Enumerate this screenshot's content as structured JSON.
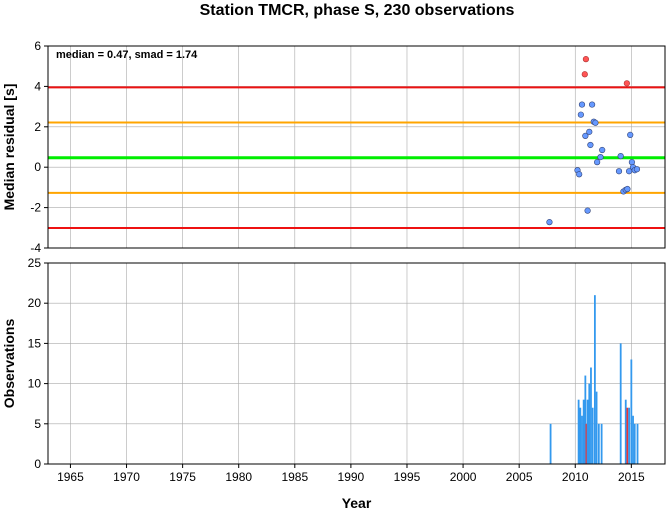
{
  "title": "Station TMCR, phase S, 230 observations",
  "annotation": "median = 0.47, smad = 1.74",
  "colors": {
    "median_line": "#00ee00",
    "smad1_line": "#ffa500",
    "smad2_line": "#ee1111",
    "point_normal": "#6699ff",
    "point_outlier": "#ff5555",
    "bar_normal": "#3399ee",
    "bar_outlier": "#ee3333",
    "grid": "#aaaaaa"
  },
  "chart_data": [
    {
      "type": "scatter",
      "ylabel": "Median residual [s]",
      "xlim": [
        1963,
        2018
      ],
      "ylim": [
        -4,
        6
      ],
      "yticks": [
        "-4",
        "-2",
        "0",
        "2",
        "4",
        "6"
      ],
      "reference_lines": {
        "median": 0.47,
        "plus_smad": 2.21,
        "minus_smad": -1.27,
        "plus_2smad": 3.95,
        "minus_2smad": -3.01
      },
      "points": [
        {
          "x": 2007.7,
          "y": -2.72
        },
        {
          "x": 2010.2,
          "y": -0.15
        },
        {
          "x": 2010.35,
          "y": -0.35
        },
        {
          "x": 2010.5,
          "y": 2.6
        },
        {
          "x": 2010.6,
          "y": 3.1
        },
        {
          "x": 2010.9,
          "y": 1.55
        },
        {
          "x": 2011.1,
          "y": -2.15
        },
        {
          "x": 2011.25,
          "y": 1.75
        },
        {
          "x": 2011.35,
          "y": 1.1
        },
        {
          "x": 2011.5,
          "y": 3.1
        },
        {
          "x": 2011.65,
          "y": 2.25
        },
        {
          "x": 2011.8,
          "y": 2.2
        },
        {
          "x": 2011.95,
          "y": 0.25
        },
        {
          "x": 2012.25,
          "y": 0.5
        },
        {
          "x": 2012.4,
          "y": 0.85
        },
        {
          "x": 2013.9,
          "y": -0.2
        },
        {
          "x": 2014.05,
          "y": 0.55
        },
        {
          "x": 2014.3,
          "y": -1.2
        },
        {
          "x": 2014.5,
          "y": -1.12
        },
        {
          "x": 2014.65,
          "y": -1.08
        },
        {
          "x": 2014.8,
          "y": -0.2
        },
        {
          "x": 2014.9,
          "y": 1.6
        },
        {
          "x": 2015.05,
          "y": 0.25
        },
        {
          "x": 2015.15,
          "y": 0.0
        },
        {
          "x": 2015.3,
          "y": -0.15
        },
        {
          "x": 2015.5,
          "y": -0.1
        }
      ],
      "outliers": [
        {
          "x": 2010.95,
          "y": 5.35
        },
        {
          "x": 2010.85,
          "y": 4.6
        },
        {
          "x": 2014.6,
          "y": 4.15
        }
      ]
    },
    {
      "type": "bar",
      "xlabel": "Year",
      "ylabel": "Observations",
      "xlim": [
        1963,
        2018
      ],
      "ylim": [
        0,
        25
      ],
      "xticks": [
        "1965",
        "1970",
        "1975",
        "1980",
        "1985",
        "1990",
        "1995",
        "2000",
        "2005",
        "2010",
        "2015"
      ],
      "yticks": [
        "0",
        "5",
        "10",
        "15",
        "20",
        "25"
      ],
      "bars": [
        {
          "x": 2007.8,
          "value": 5,
          "outlier": false
        },
        {
          "x": 2010.3,
          "value": 8,
          "outlier": false
        },
        {
          "x": 2010.45,
          "value": 7,
          "outlier": false
        },
        {
          "x": 2010.6,
          "value": 6,
          "outlier": false
        },
        {
          "x": 2010.75,
          "value": 8,
          "outlier": false
        },
        {
          "x": 2010.9,
          "value": 11,
          "outlier": false
        },
        {
          "x": 2011.0,
          "value": 5,
          "outlier": true
        },
        {
          "x": 2011.1,
          "value": 8,
          "outlier": false
        },
        {
          "x": 2011.25,
          "value": 10,
          "outlier": false
        },
        {
          "x": 2011.4,
          "value": 12,
          "outlier": false
        },
        {
          "x": 2011.55,
          "value": 7,
          "outlier": false
        },
        {
          "x": 2011.75,
          "value": 21,
          "outlier": false
        },
        {
          "x": 2011.9,
          "value": 9,
          "outlier": false
        },
        {
          "x": 2012.1,
          "value": 5,
          "outlier": false
        },
        {
          "x": 2012.35,
          "value": 5,
          "outlier": false
        },
        {
          "x": 2014.05,
          "value": 15,
          "outlier": false
        },
        {
          "x": 2014.5,
          "value": 8,
          "outlier": false
        },
        {
          "x": 2014.65,
          "value": 7,
          "outlier": true
        },
        {
          "x": 2014.8,
          "value": 7,
          "outlier": false
        },
        {
          "x": 2015.0,
          "value": 13,
          "outlier": false
        },
        {
          "x": 2015.15,
          "value": 6,
          "outlier": false
        },
        {
          "x": 2015.3,
          "value": 5,
          "outlier": false
        },
        {
          "x": 2015.55,
          "value": 5,
          "outlier": false
        }
      ]
    }
  ]
}
